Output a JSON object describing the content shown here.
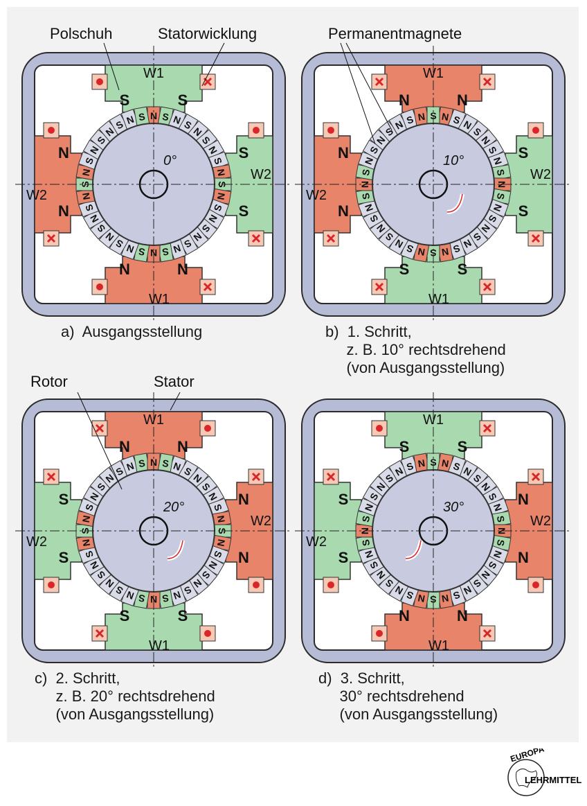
{
  "labels": {
    "polschuh": "Polschuh",
    "statorwicklung": "Statorwicklung",
    "permanentmagnete": "Permanentmagnete",
    "rotor": "Rotor",
    "stator": "Stator"
  },
  "panels": [
    {
      "id": "a",
      "caption": [
        "a)  Ausgangsstellung"
      ],
      "angle_label": "0°",
      "rotation_deg": 0,
      "w1": "W1",
      "w2": "W2",
      "top_poles": "S",
      "right_poles": "S",
      "bottom_poles": "N",
      "left_poles": "N",
      "top_winding": [
        "dot",
        "x"
      ],
      "right_winding": [
        "dot",
        "x"
      ],
      "bottom_winding": [
        "dot",
        "x"
      ],
      "left_winding": [
        "dot",
        "x"
      ]
    },
    {
      "id": "b",
      "caption": [
        "b)  1. Schritt,",
        "     z. B. 10° rechtsdrehend",
        "     (von Ausgangsstellung)"
      ],
      "angle_label": "10°",
      "rotation_deg": 10,
      "w1": "W1",
      "w2": "W2",
      "top_poles": "N",
      "right_poles": "S",
      "bottom_poles": "S",
      "left_poles": "N",
      "top_winding": [
        "x",
        "x"
      ],
      "right_winding": [
        "dot",
        "x"
      ],
      "bottom_winding": [
        "x",
        "x"
      ],
      "left_winding": [
        "dot",
        "x"
      ]
    },
    {
      "id": "c",
      "caption": [
        "c)  2. Schritt,",
        "     z. B. 20° rechtsdrehend",
        "     (von Ausgangsstellung)"
      ],
      "angle_label": "20°",
      "rotation_deg": 20,
      "w1": "W1",
      "w2": "W2",
      "top_poles": "N",
      "right_poles": "N",
      "bottom_poles": "S",
      "left_poles": "S",
      "top_winding": [
        "x",
        "dot"
      ],
      "right_winding": [
        "x",
        "dot"
      ],
      "bottom_winding": [
        "x",
        "dot"
      ],
      "left_winding": [
        "x",
        "dot"
      ]
    },
    {
      "id": "d",
      "caption": [
        "d)  3. Schritt,",
        "     30° rechtsdrehend",
        "     (von Ausgangsstellung)"
      ],
      "angle_label": "30°",
      "rotation_deg": 30,
      "w1": "W1",
      "w2": "W2",
      "top_poles": "S",
      "right_poles": "N",
      "bottom_poles": "N",
      "left_poles": "S",
      "top_winding": [
        "dot",
        "x"
      ],
      "right_winding": [
        "x",
        "dot"
      ],
      "bottom_winding": [
        "dot",
        "x"
      ],
      "left_winding": [
        "x",
        "dot"
      ]
    }
  ],
  "logo": {
    "top": "EUROPA",
    "bottom": "LEHRMITTEL"
  },
  "colors": {
    "stator": "#b7bcd6",
    "stator_stroke": "#2b2b2b",
    "rotor": "#c8cbe0",
    "north": "#e8846a",
    "south": "#a9d9ae",
    "winding": "#f7c9b5",
    "x_mark": "#d8262b",
    "dot_mark": "#d8262b"
  }
}
